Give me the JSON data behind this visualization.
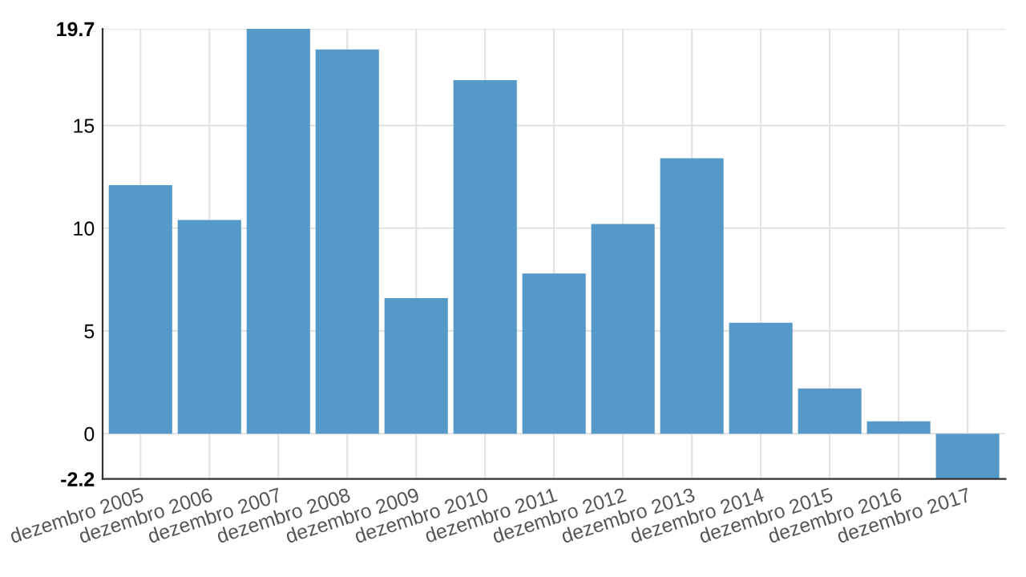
{
  "chart_data": {
    "type": "bar",
    "categories": [
      "dezembro 2005",
      "dezembro 2006",
      "dezembro 2007",
      "dezembro 2008",
      "dezembro 2009",
      "dezembro 2010",
      "dezembro 2011",
      "dezembro 2012",
      "dezembro 2013",
      "dezembro 2014",
      "dezembro 2015",
      "dezembro 2016",
      "dezembro 2017"
    ],
    "values": [
      12.1,
      10.4,
      19.7,
      18.7,
      6.6,
      17.2,
      7.8,
      10.2,
      13.4,
      5.4,
      2.2,
      0.6,
      -2.2
    ],
    "color": "#5499c7",
    "ylim": [
      -2.2,
      19.7
    ],
    "yticks": [
      -2.2,
      0,
      5,
      10,
      15,
      19.7
    ],
    "grid": true
  }
}
